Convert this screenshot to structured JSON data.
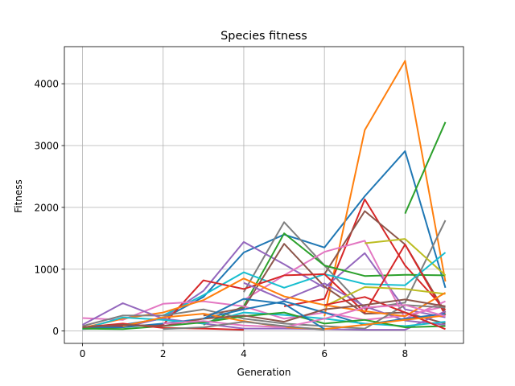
{
  "chart_data": {
    "type": "line",
    "title": "Species fitness",
    "xlabel": "Generation",
    "ylabel": "Fitness",
    "xlim": [
      -0.45,
      9.45
    ],
    "ylim": [
      -200,
      4600
    ],
    "xticks": [
      0,
      2,
      4,
      6,
      8
    ],
    "yticks": [
      0,
      1000,
      2000,
      3000,
      4000
    ],
    "grid": true,
    "x": [
      0,
      1,
      2,
      3,
      4,
      5,
      6,
      7,
      8,
      9
    ],
    "series": [
      {
        "color": "#1f77b4",
        "values": [
          40,
          100,
          200,
          550,
          1270,
          1560,
          1350,
          2180,
          2910,
          700
        ]
      },
      {
        "color": "#ff7f0e",
        "values": [
          null,
          null,
          null,
          null,
          null,
          null,
          240,
          3250,
          4370,
          800
        ]
      },
      {
        "color": "#2ca02c",
        "values": [
          null,
          null,
          null,
          null,
          null,
          null,
          null,
          null,
          1900,
          3380
        ]
      },
      {
        "color": "#d62728",
        "values": [
          null,
          null,
          null,
          null,
          null,
          400,
          520,
          2130,
          1060,
          340
        ]
      },
      {
        "color": "#8c564b",
        "values": [
          null,
          null,
          null,
          null,
          null,
          null,
          920,
          1940,
          1400,
          300
        ]
      },
      {
        "color": "#7f7f7f",
        "values": [
          null,
          null,
          null,
          null,
          630,
          1760,
          1060,
          360,
          460,
          1790
        ]
      },
      {
        "color": "#9467bd",
        "values": [
          30,
          60,
          210,
          650,
          1440,
          1080,
          700,
          1260,
          350,
          220
        ]
      },
      {
        "color": "#2ca02c",
        "values": [
          null,
          null,
          null,
          100,
          400,
          1580,
          1060,
          890,
          910,
          900
        ]
      },
      {
        "color": "#e377c2",
        "values": [
          null,
          null,
          null,
          null,
          500,
          900,
          1280,
          1460,
          200,
          480
        ]
      },
      {
        "color": "#bcbd22",
        "values": [
          null,
          null,
          null,
          null,
          null,
          null,
          null,
          1420,
          1490,
          900
        ]
      },
      {
        "color": "#17becf",
        "values": [
          null,
          null,
          250,
          580,
          950,
          700,
          920,
          760,
          740,
          1270
        ]
      },
      {
        "color": "#8c564b",
        "values": [
          null,
          null,
          null,
          250,
          370,
          1410,
          720,
          280,
          300,
          120
        ]
      },
      {
        "color": "#d62728",
        "values": [
          60,
          80,
          100,
          820,
          680,
          900,
          920,
          300,
          1400,
          260
        ]
      },
      {
        "color": "#9467bd",
        "values": [
          null,
          null,
          null,
          null,
          780,
          500,
          770,
          400,
          170,
          100
        ]
      },
      {
        "color": "#bcbd22",
        "values": [
          null,
          null,
          null,
          null,
          null,
          null,
          400,
          710,
          680,
          600
        ]
      },
      {
        "color": "#e377c2",
        "values": [
          210,
          180,
          440,
          480,
          400,
          200,
          300,
          180,
          250,
          400
        ]
      },
      {
        "color": "#ff7f0e",
        "values": [
          50,
          200,
          300,
          500,
          850,
          560,
          420,
          320,
          240,
          620
        ]
      },
      {
        "color": "#7f7f7f",
        "values": [
          80,
          250,
          250,
          350,
          200,
          120,
          80,
          40,
          420,
          380
        ]
      },
      {
        "color": "#1f77b4",
        "values": [
          50,
          60,
          120,
          200,
          350,
          480,
          300,
          100,
          200,
          280
        ]
      },
      {
        "color": "#9467bd",
        "values": [
          100,
          450,
          200,
          120,
          40,
          40,
          30,
          20,
          20,
          320
        ]
      },
      {
        "color": "#17becf",
        "values": [
          30,
          220,
          180,
          120,
          300,
          260,
          200,
          120,
          80,
          150
        ]
      },
      {
        "color": "#2ca02c",
        "values": [
          40,
          30,
          80,
          140,
          240,
          300,
          120,
          180,
          60,
          80
        ]
      },
      {
        "color": "#d62728",
        "values": [
          60,
          120,
          50,
          40,
          20,
          null,
          420,
          550,
          300,
          30
        ]
      },
      {
        "color": "#ff7f0e",
        "values": [
          null,
          80,
          220,
          280,
          160,
          60,
          30,
          100,
          180,
          250
        ]
      },
      {
        "color": "#8c564b",
        "values": [
          60,
          100,
          80,
          200,
          250,
          150,
          350,
          420,
          510,
          400
        ]
      },
      {
        "color": "#1f77b4",
        "values": [
          null,
          null,
          null,
          200,
          520,
          440,
          30,
          null,
          null,
          null
        ]
      },
      {
        "color": "#e377c2",
        "values": [
          null,
          null,
          120,
          160,
          90,
          60,
          200,
          380,
          420,
          240
        ]
      },
      {
        "color": "#7f7f7f",
        "values": [
          null,
          null,
          30,
          60,
          150,
          80,
          20,
          null,
          null,
          null
        ]
      }
    ]
  }
}
